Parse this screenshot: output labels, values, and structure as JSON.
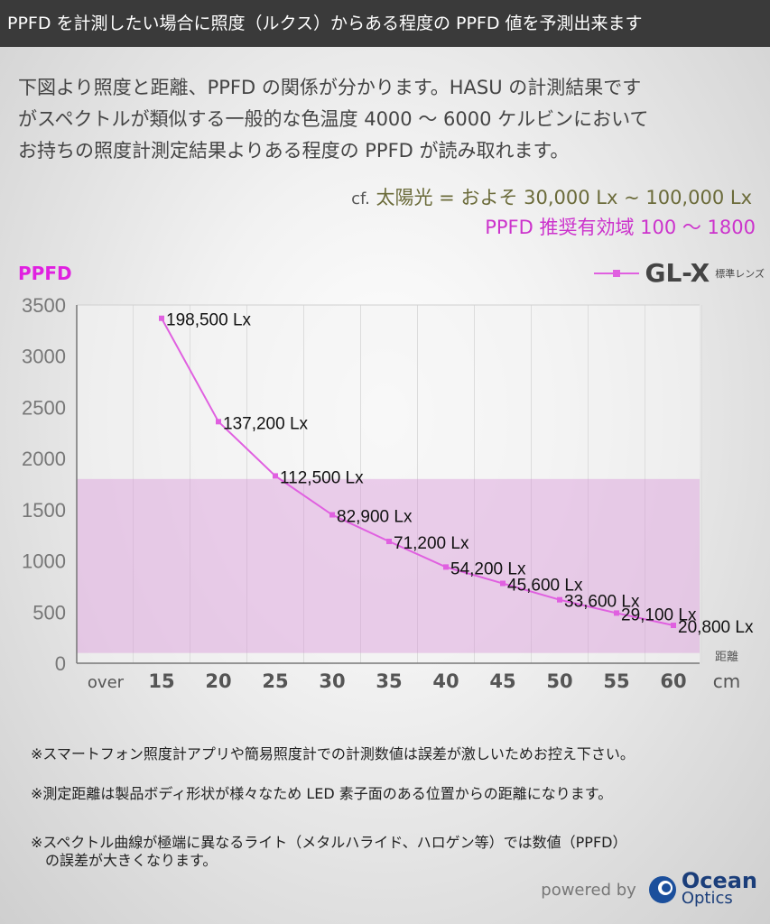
{
  "header": {
    "title": "PPFD を計測したい場合に照度（ルクス）からある程度の PPFD 値を予測出来ます"
  },
  "intro": {
    "lines": [
      "下図より照度と距離、PPFD の関係が分かります。HASU の計測結果です",
      "がスペクトルが類似する一般的な色温度 4000 ～ 6000 ケルビンにおいて",
      "お持ちの照度計測定結果よりある程度の PPFD が読み取れます。"
    ],
    "cf_prefix": "cf.",
    "cf_text": "太陽光 = およそ 30,000 Lx ~ 100,000 Lx",
    "recommended": "PPFD 推奨有効域 100 ～ 1800"
  },
  "chart_data": {
    "type": "line",
    "title": "",
    "ylabel": "PPFD",
    "xlabel": "距離",
    "xunit": "cm",
    "x_categories": [
      "over",
      "15",
      "20",
      "25",
      "30",
      "35",
      "40",
      "45",
      "50",
      "55",
      "60"
    ],
    "ylim": [
      0,
      3500
    ],
    "yticks": [
      "0",
      "500",
      "1000",
      "1500",
      "2000",
      "2500",
      "3000",
      "3500"
    ],
    "recommended_band": [
      100,
      1800
    ],
    "series": [
      {
        "name": "GL-X",
        "sublabel": "標準レンズ",
        "color": "#e060e0",
        "x": [
          15,
          20,
          25,
          30,
          35,
          40,
          45,
          50,
          55,
          60
        ],
        "values": [
          3370,
          2360,
          1830,
          1450,
          1190,
          940,
          780,
          620,
          490,
          370
        ],
        "labels": [
          "198,500 Lx",
          "137,200 Lx",
          "112,500 Lx",
          "82,900 Lx",
          "71,200 Lx",
          "54,200 Lx",
          "45,600 Lx",
          "33,600 Lx",
          "29,100 Lx",
          "20,800 Lx"
        ]
      }
    ],
    "legend": "top-right",
    "grid": true
  },
  "notes": [
    "※スマートフォン照度計アプリや簡易照度計での計測数値は誤差が激しいためお控え下さい。",
    "※測定距離は製品ボディ形状が様々なため LED 素子面のある位置からの距離になります。",
    "※スペクトル曲線が極端に異なるライト（メタルハライド、ハロゲン等）では数値（PPFD）",
    "　の誤差が大きくなります。"
  ],
  "footer": {
    "powered_by": "powered by",
    "logo_line1": "Ocean",
    "logo_line2": "Optics"
  }
}
